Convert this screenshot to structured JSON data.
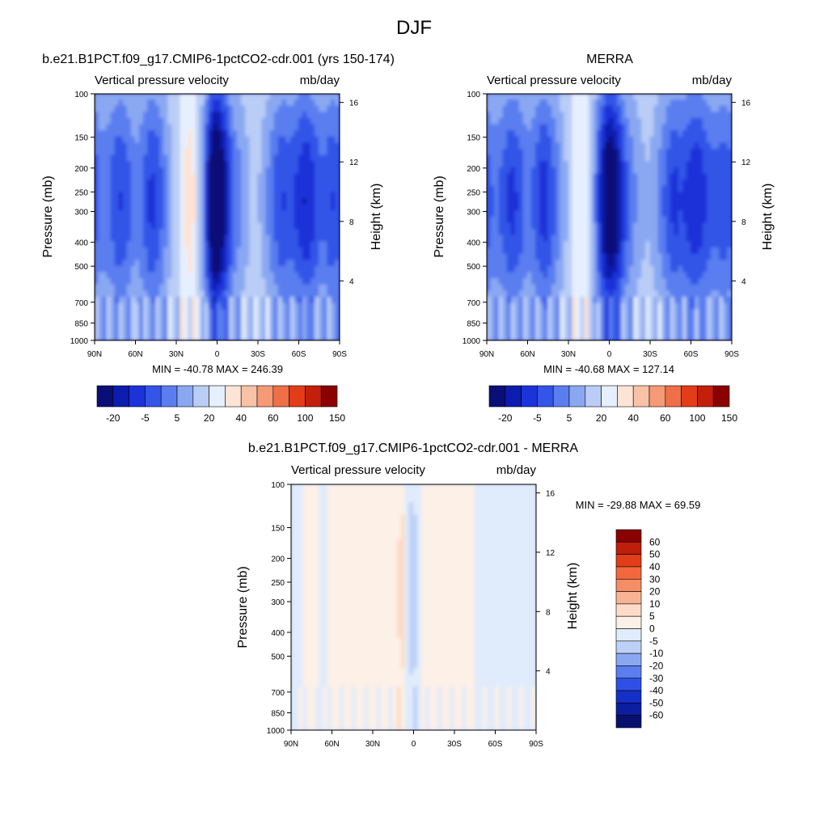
{
  "figure_title": "DJF",
  "colors": {
    "frame": "#000000",
    "background": "#ffffff"
  },
  "chart_data": [
    {
      "id": "model",
      "type": "heatmap",
      "title": "b.e21.B1PCT.f09_g17.CMIP6-1pctCO2-cdr.001 (yrs 150-174)",
      "left_string": "Vertical pressure velocity",
      "right_string": "mb/day",
      "ylabel": "Pressure (mb)",
      "ylabel_right": "Height (km)",
      "x_ticks": [
        "90N",
        "60N",
        "30N",
        "0",
        "30S",
        "60S",
        "90S"
      ],
      "x_tick_values": [
        90,
        60,
        30,
        0,
        -30,
        -60,
        -90
      ],
      "y_ticks": [
        "100",
        "150",
        "200",
        "250",
        "300",
        "400",
        "500",
        "700",
        "850",
        "1000"
      ],
      "y_tick_values": [
        100,
        150,
        200,
        250,
        300,
        400,
        500,
        700,
        850,
        1000
      ],
      "y_scale": "log",
      "y_right_ticks": [
        "16",
        "12",
        "8",
        "4"
      ],
      "y_right_values": [
        16,
        12,
        8,
        4
      ],
      "min_max_text": "MIN = -40.78  MAX = 246.39",
      "colorbar": {
        "orientation": "horizontal",
        "labels": [
          "-20",
          "-5",
          "5",
          "20",
          "40",
          "60",
          "100",
          "150"
        ],
        "colors": [
          "#0a0f78",
          "#0c1cae",
          "#1b33d8",
          "#3355e8",
          "#5a7ef0",
          "#8aa8f2",
          "#b9cdf6",
          "#e6efff",
          "#fde4d4",
          "#f9c2a6",
          "#f59a75",
          "#ee6f48",
          "#e23d18",
          "#c31f0c",
          "#8b0000"
        ]
      },
      "fields": {
        "profile": [
          [
            90,
            -14
          ],
          [
            84,
            -10
          ],
          [
            78,
            -12
          ],
          [
            72,
            -16
          ],
          [
            66,
            -14
          ],
          [
            60,
            -9
          ],
          [
            54,
            -12
          ],
          [
            48,
            -17
          ],
          [
            42,
            -14
          ],
          [
            36,
            -7
          ],
          [
            30,
            -2
          ],
          [
            24,
            4
          ],
          [
            18,
            6
          ],
          [
            12,
            -2
          ],
          [
            6,
            -22
          ],
          [
            2,
            -34
          ],
          [
            -2,
            -32
          ],
          [
            -6,
            -24
          ],
          [
            -12,
            -12
          ],
          [
            -18,
            -8
          ],
          [
            -24,
            -4
          ],
          [
            -30,
            -3
          ],
          [
            -36,
            -7
          ],
          [
            -42,
            -12
          ],
          [
            -48,
            -16
          ],
          [
            -54,
            -14
          ],
          [
            -60,
            -17
          ],
          [
            -66,
            -20
          ],
          [
            -72,
            -16
          ],
          [
            -78,
            -12
          ],
          [
            -84,
            -16
          ],
          [
            -90,
            -14
          ]
        ]
      }
    },
    {
      "id": "merra",
      "type": "heatmap",
      "title": "MERRA",
      "left_string": "Vertical pressure velocity",
      "right_string": "mb/day",
      "ylabel": "Pressure (mb)",
      "ylabel_right": "Height (km)",
      "x_ticks": [
        "90N",
        "60N",
        "30N",
        "0",
        "30S",
        "60S",
        "90S"
      ],
      "x_tick_values": [
        90,
        60,
        30,
        0,
        -30,
        -60,
        -90
      ],
      "y_ticks": [
        "100",
        "150",
        "200",
        "250",
        "300",
        "400",
        "500",
        "700",
        "850",
        "1000"
      ],
      "y_tick_values": [
        100,
        150,
        200,
        250,
        300,
        400,
        500,
        700,
        850,
        1000
      ],
      "y_scale": "log",
      "y_right_ticks": [
        "16",
        "12",
        "8",
        "4"
      ],
      "y_right_values": [
        16,
        12,
        8,
        4
      ],
      "min_max_text": "MIN = -40.68  MAX = 127.14",
      "colorbar": {
        "orientation": "horizontal",
        "labels": [
          "-20",
          "-5",
          "5",
          "20",
          "40",
          "60",
          "100",
          "150"
        ],
        "colors": [
          "#0a0f78",
          "#0c1cae",
          "#1b33d8",
          "#3355e8",
          "#5a7ef0",
          "#8aa8f2",
          "#b9cdf6",
          "#e6efff",
          "#fde4d4",
          "#f9c2a6",
          "#f59a75",
          "#ee6f48",
          "#e23d18",
          "#c31f0c",
          "#8b0000"
        ]
      },
      "fields": {
        "profile": [
          [
            90,
            -14
          ],
          [
            84,
            -11
          ],
          [
            78,
            -13
          ],
          [
            72,
            -17
          ],
          [
            66,
            -15
          ],
          [
            60,
            -10
          ],
          [
            54,
            -13
          ],
          [
            48,
            -18
          ],
          [
            42,
            -14
          ],
          [
            36,
            -8
          ],
          [
            30,
            -3
          ],
          [
            24,
            2
          ],
          [
            18,
            4
          ],
          [
            12,
            -4
          ],
          [
            6,
            -20
          ],
          [
            2,
            -28
          ],
          [
            -2,
            -30
          ],
          [
            -6,
            -26
          ],
          [
            -12,
            -14
          ],
          [
            -18,
            -9
          ],
          [
            -24,
            -5
          ],
          [
            -30,
            -4
          ],
          [
            -36,
            -8
          ],
          [
            -42,
            -13
          ],
          [
            -48,
            -17
          ],
          [
            -54,
            -15
          ],
          [
            -60,
            -18
          ],
          [
            -66,
            -19
          ],
          [
            -72,
            -15
          ],
          [
            -78,
            -13
          ],
          [
            -84,
            -15
          ],
          [
            -90,
            -13
          ]
        ]
      }
    },
    {
      "id": "difference",
      "type": "heatmap",
      "title": "b.e21.B1PCT.f09_g17.CMIP6-1pctCO2-cdr.001 - MERRA",
      "left_string": "Vertical pressure velocity",
      "right_string": "mb/day",
      "ylabel": "Pressure (mb)",
      "ylabel_right": "Height (km)",
      "x_ticks": [
        "90N",
        "60N",
        "30N",
        "0",
        "30S",
        "60S",
        "90S"
      ],
      "x_tick_values": [
        90,
        60,
        30,
        0,
        -30,
        -60,
        -90
      ],
      "y_ticks": [
        "100",
        "150",
        "200",
        "250",
        "300",
        "400",
        "500",
        "700",
        "850",
        "1000"
      ],
      "y_tick_values": [
        100,
        150,
        200,
        250,
        300,
        400,
        500,
        700,
        850,
        1000
      ],
      "y_scale": "log",
      "y_right_ticks": [
        "16",
        "12",
        "8",
        "4"
      ],
      "y_right_values": [
        16,
        12,
        8,
        4
      ],
      "min_max_text": "MIN = -29.88  MAX =  69.59",
      "colorbar": {
        "orientation": "vertical",
        "labels": [
          "60",
          "50",
          "40",
          "30",
          "20",
          "10",
          "5",
          "0",
          "-5",
          "-10",
          "-20",
          "-30",
          "-40",
          "-50",
          "-60"
        ],
        "colors": [
          "#8b0000",
          "#bd1f0a",
          "#e23d18",
          "#f2683c",
          "#f58e66",
          "#f7b394",
          "#fcdcc8",
          "#fdf0e6",
          "#e0ebfb",
          "#bdd1f7",
          "#8aa8f2",
          "#5a7ef0",
          "#2f50e6",
          "#1530c8",
          "#0b1ea0",
          "#08106e"
        ]
      },
      "fields": {
        "profile": [
          [
            90,
            -3
          ],
          [
            84,
            -2
          ],
          [
            78,
            2
          ],
          [
            72,
            1
          ],
          [
            66,
            -1
          ],
          [
            60,
            2
          ],
          [
            54,
            3
          ],
          [
            48,
            1
          ],
          [
            42,
            2
          ],
          [
            36,
            3
          ],
          [
            30,
            1
          ],
          [
            24,
            2
          ],
          [
            18,
            1
          ],
          [
            12,
            3
          ],
          [
            8,
            7
          ],
          [
            4,
            -4
          ],
          [
            0,
            -8
          ],
          [
            -4,
            -2
          ],
          [
            -8,
            1
          ],
          [
            -12,
            2
          ],
          [
            -18,
            2
          ],
          [
            -24,
            1
          ],
          [
            -30,
            1
          ],
          [
            -36,
            2
          ],
          [
            -42,
            1
          ],
          [
            -48,
            -1
          ],
          [
            -54,
            -3
          ],
          [
            -60,
            -2
          ],
          [
            -66,
            -1
          ],
          [
            -72,
            -2
          ],
          [
            -78,
            -2
          ],
          [
            -84,
            -3
          ],
          [
            -90,
            -3
          ]
        ]
      }
    }
  ]
}
